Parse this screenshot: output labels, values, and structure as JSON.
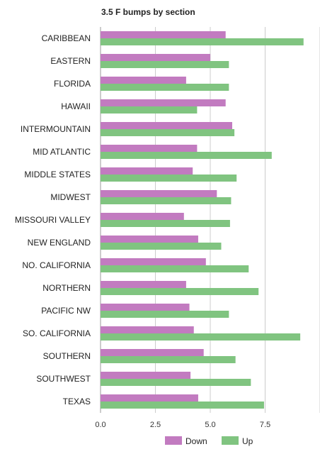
{
  "chart_data": {
    "type": "bar",
    "orientation": "horizontal",
    "title": "3.5 F bumps by section",
    "categories": [
      "CARIBBEAN",
      "EASTERN",
      "FLORIDA",
      "HAWAII",
      "INTERMOUNTAIN",
      "MID ATLANTIC",
      "MIDDLE STATES",
      "MIDWEST",
      "MISSOURI VALLEY",
      "NEW ENGLAND",
      "NO. CALIFORNIA",
      "NORTHERN",
      "PACIFIC NW",
      "SO. CALIFORNIA",
      "SOUTHERN",
      "SOUTHWEST",
      "TEXAS"
    ],
    "series": [
      {
        "name": "Down",
        "color": "#c27bc0",
        "values": [
          5.7,
          5.0,
          3.9,
          5.7,
          6.0,
          4.4,
          4.2,
          5.3,
          3.8,
          4.45,
          4.8,
          3.9,
          4.05,
          4.25,
          4.7,
          4.1,
          4.45
        ]
      },
      {
        "name": "Up",
        "color": "#80c480",
        "values": [
          9.25,
          5.85,
          5.85,
          4.4,
          6.1,
          7.8,
          6.2,
          5.95,
          5.9,
          5.5,
          6.75,
          7.2,
          5.85,
          9.1,
          6.15,
          6.85,
          7.45
        ]
      }
    ],
    "xlim": [
      0,
      10
    ],
    "xticks": [
      "0.0",
      "2.5",
      "5.0",
      "7.5"
    ],
    "xtick_values": [
      0,
      2.5,
      5,
      7.5
    ],
    "grid": true,
    "legend_position": "bottom"
  }
}
